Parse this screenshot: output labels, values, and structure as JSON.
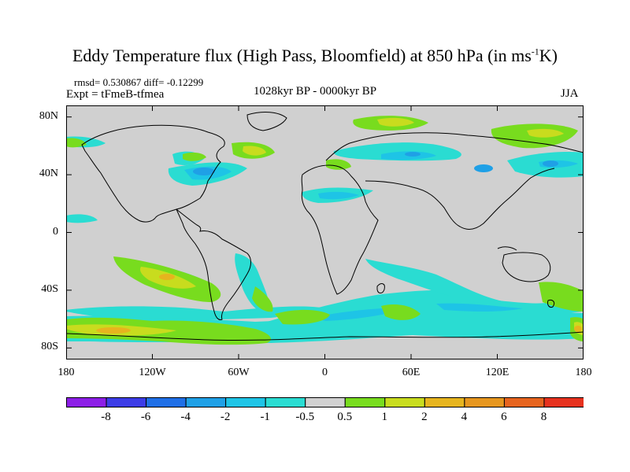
{
  "title": {
    "main": "Eddy Temperature flux (High Pass, Bloomfield) at 850 hPa (in ms",
    "sup": "-1",
    "end": "K)"
  },
  "stats": {
    "rmsd_line": "rmsd= 0.530867 diff= -0.12299"
  },
  "experiment": "Expt = tFmeB-tfmea",
  "period": "1028kyr BP - 0000kyr BP",
  "season": "JJA",
  "y_axis": {
    "labels": [
      "80N",
      "40N",
      "0",
      "40S",
      "80S"
    ],
    "values": [
      80,
      40,
      0,
      -40,
      -80
    ]
  },
  "x_axis": {
    "labels": [
      "180",
      "120W",
      "60W",
      "0",
      "60E",
      "120E",
      "180"
    ],
    "values": [
      -180,
      -120,
      -60,
      0,
      60,
      120,
      180
    ]
  },
  "map_extent": {
    "lon": [
      -180,
      180
    ],
    "lat": [
      -88,
      88
    ]
  },
  "colorbar": {
    "labels": [
      "-8",
      "-6",
      "-4",
      "-2",
      "-1",
      "-0.5",
      "0.5",
      "1",
      "2",
      "4",
      "6",
      "8"
    ],
    "colors": [
      "#8c1ee6",
      "#3c3ce6",
      "#1f6fe6",
      "#1fa0e6",
      "#1ec4e6",
      "#2adcd2",
      "#d0d0d0",
      "#78dc1e",
      "#c8dc1e",
      "#e6b41e",
      "#e6961e",
      "#e6641e",
      "#e6321e"
    ]
  },
  "colors": {
    "land_background": "#d0d0d0",
    "coast": "#000000",
    "cyan": "#2adcd2",
    "lightblue": "#1ec4e6",
    "blue": "#1fa0e6",
    "green": "#78dc1e",
    "yellow": "#c8dc1e",
    "orange": "#e6b41e"
  }
}
